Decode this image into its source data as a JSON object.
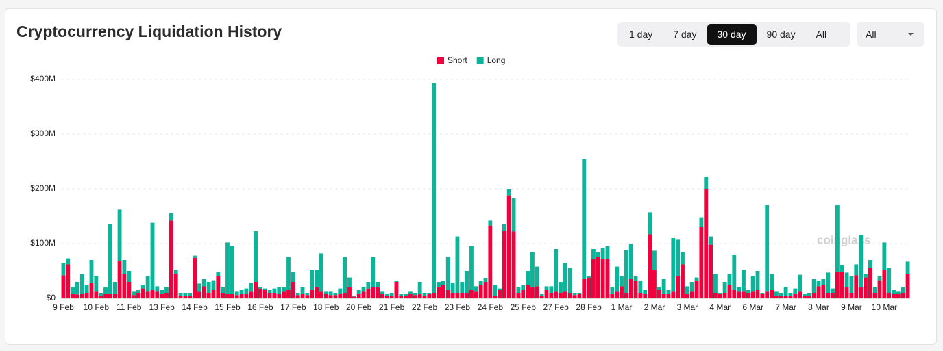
{
  "chart_data": {
    "type": "bar",
    "stacked": true,
    "title": "Cryptocurrency Liquidation History",
    "watermark": "coinglass",
    "categories": [
      "9 Feb",
      null,
      null,
      null,
      null,
      null,
      null,
      "10 Feb",
      null,
      null,
      null,
      null,
      null,
      null,
      "11 Feb",
      null,
      null,
      null,
      null,
      null,
      null,
      "13 Feb",
      null,
      null,
      null,
      null,
      null,
      null,
      "14 Feb",
      null,
      null,
      null,
      null,
      null,
      null,
      "15 Feb",
      null,
      null,
      null,
      null,
      null,
      null,
      "16 Feb",
      null,
      null,
      null,
      null,
      null,
      null,
      "17 Feb",
      null,
      null,
      null,
      null,
      null,
      null,
      "18 Feb",
      null,
      null,
      null,
      null,
      null,
      null,
      "20 Feb",
      null,
      null,
      null,
      null,
      null,
      null,
      "21 Feb",
      null,
      null,
      null,
      null,
      null,
      null,
      "22 Feb",
      null,
      null,
      null,
      null,
      null,
      null,
      "23 Feb",
      null,
      null,
      null,
      null,
      null,
      null,
      "24 Feb",
      null,
      null,
      null,
      null,
      null,
      null,
      "25 Feb",
      null,
      null,
      null,
      null,
      null,
      null,
      "27 Feb",
      null,
      null,
      null,
      null,
      null,
      null,
      "28 Feb",
      null,
      null,
      null,
      null,
      null,
      null,
      "1 Mar",
      null,
      null,
      null,
      null,
      null,
      null,
      "2 Mar",
      null,
      null,
      null,
      null,
      null,
      null,
      "3 Mar",
      null,
      null,
      null,
      null,
      null,
      null,
      "4 Mar",
      null,
      null,
      null,
      null,
      null,
      null,
      "6 Mar",
      null,
      null,
      null,
      null,
      null,
      null,
      "7 Mar",
      null,
      null,
      null,
      null,
      null,
      null,
      "8 Mar",
      null,
      null,
      null,
      null,
      null,
      null,
      "9 Mar",
      null,
      null,
      null,
      null,
      null,
      null,
      "10 Mar",
      null,
      null,
      null,
      null,
      null
    ],
    "series": [
      {
        "name": "Short",
        "color": "#f0003c",
        "values": [
          42,
          62,
          8,
          7,
          8,
          10,
          28,
          12,
          5,
          8,
          8,
          8,
          68,
          45,
          30,
          6,
          10,
          18,
          12,
          15,
          12,
          8,
          10,
          142,
          45,
          5,
          5,
          5,
          74,
          12,
          22,
          10,
          15,
          40,
          10,
          8,
          8,
          6,
          8,
          8,
          12,
          30,
          18,
          15,
          10,
          10,
          8,
          12,
          15,
          30,
          6,
          8,
          6,
          15,
          20,
          12,
          8,
          6,
          6,
          8,
          10,
          20,
          3,
          8,
          12,
          18,
          20,
          20,
          8,
          5,
          5,
          30,
          5,
          5,
          8,
          6,
          8,
          5,
          8,
          10,
          20,
          25,
          15,
          10,
          10,
          10,
          10,
          15,
          12,
          25,
          30,
          133,
          5,
          15,
          123,
          188,
          122,
          10,
          15,
          25,
          20,
          22,
          5,
          15,
          10,
          12,
          10,
          12,
          10,
          6,
          8,
          35,
          38,
          72,
          75,
          72,
          72,
          8,
          12,
          22,
          10,
          35,
          32,
          10,
          8,
          117,
          52,
          15,
          8,
          8,
          12,
          40,
          62,
          8,
          12,
          32,
          130,
          200,
          98,
          10,
          8,
          10,
          25,
          15,
          12,
          12,
          10,
          12,
          15,
          8,
          12,
          15,
          5,
          5,
          5,
          5,
          8,
          12,
          5,
          4,
          10,
          22,
          25,
          10,
          10,
          48,
          48,
          20,
          10,
          42,
          20,
          38,
          55,
          10,
          33,
          52,
          10,
          8,
          8,
          10,
          45
        ]
      },
      {
        "name": "Long",
        "color": "#0eb49a",
        "values": [
          23,
          11,
          12,
          23,
          37,
          15,
          42,
          28,
          5,
          12,
          127,
          22,
          94,
          25,
          20,
          6,
          5,
          7,
          28,
          123,
          10,
          7,
          10,
          13,
          7,
          5,
          5,
          5,
          4,
          15,
          13,
          20,
          18,
          8,
          10,
          94,
          87,
          6,
          7,
          10,
          16,
          93,
          2,
          3,
          5,
          8,
          12,
          8,
          60,
          18,
          4,
          12,
          4,
          37,
          32,
          70,
          4,
          6,
          4,
          10,
          65,
          18,
          2,
          7,
          8,
          12,
          55,
          10,
          4,
          3,
          5,
          2,
          3,
          3,
          4,
          4,
          22,
          5,
          2,
          383,
          10,
          7,
          60,
          18,
          103,
          20,
          40,
          80,
          10,
          7,
          7,
          9,
          20,
          3,
          12,
          12,
          61,
          10,
          10,
          25,
          65,
          36,
          3,
          7,
          12,
          78,
          20,
          53,
          45,
          4,
          2,
          220,
          2,
          18,
          10,
          20,
          23,
          12,
          46,
          18,
          78,
          65,
          8,
          22,
          7,
          40,
          35,
          5,
          27,
          7,
          98,
          67,
          23,
          14,
          18,
          6,
          18,
          22,
          15,
          35,
          2,
          20,
          20,
          65,
          8,
          40,
          5,
          28,
          35,
          2,
          158,
          30,
          7,
          5,
          15,
          5,
          10,
          31,
          3,
          6,
          25,
          10,
          10,
          37,
          8,
          122,
          12,
          27,
          30,
          20,
          95,
          7,
          15,
          10,
          7,
          50,
          45,
          7,
          4,
          10,
          22
        ]
      }
    ],
    "ylim": [
      0,
      400
    ],
    "yticks": [
      {
        "value": 0,
        "label": "$0"
      },
      {
        "value": 100,
        "label": "$100M"
      },
      {
        "value": 200,
        "label": "$200M"
      },
      {
        "value": 300,
        "label": "$300M"
      },
      {
        "value": 400,
        "label": "$400M"
      }
    ],
    "grid": true,
    "legend": "top"
  },
  "controls": {
    "ranges": [
      "1 day",
      "7 day",
      "30 day",
      "90 day",
      "All"
    ],
    "selected": "30 day",
    "filter": "All"
  }
}
